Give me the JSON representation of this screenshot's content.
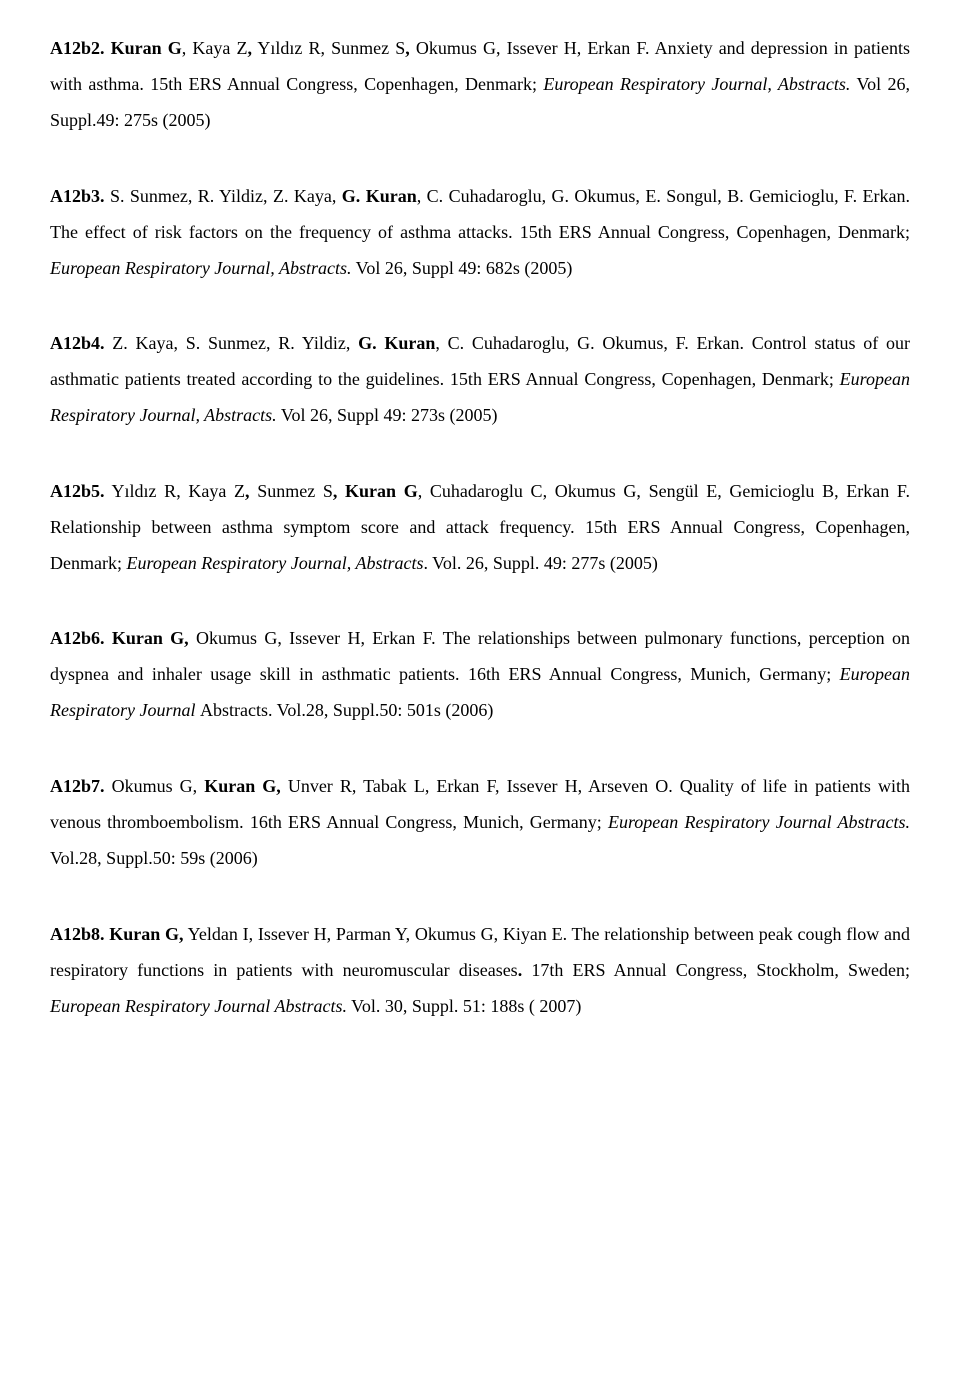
{
  "entries": [
    {
      "id": "A12b2.",
      "parts": [
        {
          "t": " Kuran G",
          "b": true
        },
        {
          "t": ", Kaya Z"
        },
        {
          "t": ",",
          "b": true
        },
        {
          "t": " Yıldız R, Sunmez S"
        },
        {
          "t": ",",
          "b": true
        },
        {
          "t": " Okumus G, Issever H, Erkan F. Anxiety and depression in patients with asthma. 15th ERS Annual Congress, Copenhagen, Denmark; "
        },
        {
          "t": "European Respiratory Journal, Abstracts.",
          "i": true
        },
        {
          "t": " Vol 26, Suppl.49: 275s (2005)"
        }
      ]
    },
    {
      "id": "A12b3.",
      "parts": [
        {
          "t": " S. Sunmez, R. Yildiz, Z. Kaya, "
        },
        {
          "t": "G. Kuran",
          "b": true
        },
        {
          "t": ", C. Cuhadaroglu, G. Okumus, E. Songul, B. Gemicioglu, F. Erkan. The effect of risk factors on the frequency of asthma attacks. 15th ERS Annual Congress, Copenhagen, Denmark; "
        },
        {
          "t": "European Respiratory Journal, Abstracts.",
          "i": true
        },
        {
          "t": " Vol 26, Suppl 49: 682s (2005)"
        }
      ]
    },
    {
      "id": "A12b4.",
      "parts": [
        {
          "t": " Z. Kaya, S. Sunmez, R. Yildiz, "
        },
        {
          "t": "G. Kuran",
          "b": true
        },
        {
          "t": ", C. Cuhadaroglu, G. Okumus, F. Erkan. Control status of our asthmatic patients treated according to the guidelines. 15th ERS Annual Congress, Copenhagen, Denmark; "
        },
        {
          "t": "European Respiratory Journal, Abstracts.",
          "i": true
        },
        {
          "t": " Vol 26, Suppl 49: 273s (2005)"
        }
      ]
    },
    {
      "id": "A12b5.",
      "parts": [
        {
          "t": " Yıldız R, Kaya Z"
        },
        {
          "t": ",",
          "b": true
        },
        {
          "t": " Sunmez S"
        },
        {
          "t": ", Kuran G",
          "b": true
        },
        {
          "t": ", Cuhadaroglu C, Okumus G, Sengül E, Gemicioglu B, Erkan F. Relationship between asthma symptom score and attack frequency. 15th ERS Annual Congress, Copenhagen, Denmark; "
        },
        {
          "t": "European Respiratory Journal, Abstracts",
          "i": true
        },
        {
          "t": ". Vol. 26, Suppl. 49: 277s (2005)"
        }
      ]
    },
    {
      "id": "A12b6.",
      "parts": [
        {
          "t": " Kuran G,",
          "b": true
        },
        {
          "t": " Okumus G, Issever H, Erkan F. The relationships between pulmonary functions, perception on dyspnea and inhaler usage skill in asthmatic patients. 16th ERS Annual Congress, Munich, Germany; "
        },
        {
          "t": "European Respiratory Journal ",
          "i": true
        },
        {
          "t": "Abstracts. Vol.28, Suppl.50: 501s (2006)"
        }
      ]
    },
    {
      "id": "A12b7.",
      "parts": [
        {
          "t": " Okumus G, "
        },
        {
          "t": "Kuran G,",
          "b": true
        },
        {
          "t": " Unver R, Tabak L, Erkan F, Issever H, Arseven O. Quality of life in patients with venous thromboembolism. 16th ERS Annual Congress, Munich, Germany; "
        },
        {
          "t": "European Respiratory Journal Abstracts.",
          "i": true
        },
        {
          "t": " Vol.28, Suppl.50: 59s (2006)"
        }
      ]
    },
    {
      "id": "A12b8.",
      "parts": [
        {
          "t": " Kuran G,",
          "b": true
        },
        {
          "t": " Yeldan I, Issever H, Parman Y, Okumus G, Kiyan E. The relationship between peak cough flow and respiratory functions in patients with neuromuscular diseases"
        },
        {
          "t": ".",
          "b": true
        },
        {
          "t": " 17th ERS Annual Congress, Stockholm, Sweden; "
        },
        {
          "t": " European Respiratory Journal Abstracts.",
          "i": true
        },
        {
          "t": " Vol. 30, Suppl. 51: 188s ( 2007)"
        }
      ]
    }
  ]
}
